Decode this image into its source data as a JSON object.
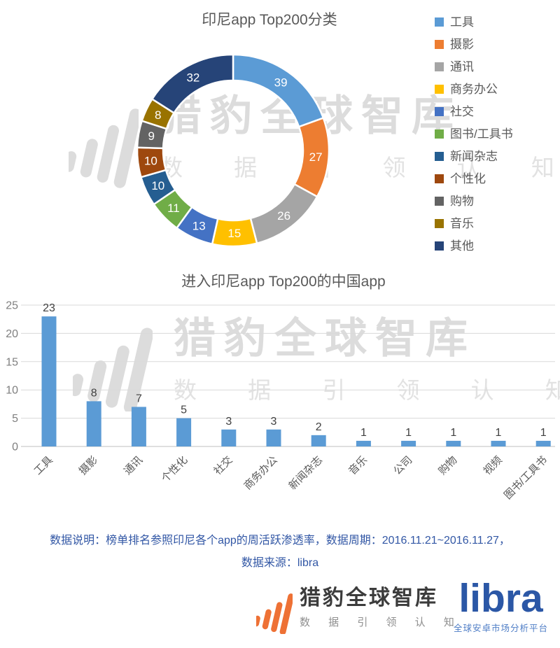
{
  "page_kind": "analytics-report-image",
  "watermark": {
    "brand": "猎豹全球智库",
    "slogan": "数 据 引 领 认 知"
  },
  "chart_data": [
    {
      "type": "pie",
      "donut": true,
      "title": "印尼app Top200分类",
      "total": 200,
      "legend_position": "right",
      "labels": [
        "工具",
        "摄影",
        "通讯",
        "商务办公",
        "社交",
        "图书/工具书",
        "新闻杂志",
        "个性化",
        "购物",
        "音乐",
        "其他"
      ],
      "values": [
        39,
        27,
        26,
        15,
        13,
        11,
        10,
        10,
        9,
        8,
        32
      ],
      "colors": [
        "#5B9BD5",
        "#ED7D31",
        "#A5A5A5",
        "#FFC000",
        "#4472C4",
        "#70AD47",
        "#255E91",
        "#9E480E",
        "#636363",
        "#997300",
        "#264478"
      ],
      "label_color": "#FFFFFF"
    },
    {
      "type": "bar",
      "title": "进入印尼app Top200的中国app",
      "categories": [
        "工具",
        "摄影",
        "通讯",
        "个性化",
        "社交",
        "商务办公",
        "新闻杂志",
        "音乐",
        "公司",
        "购物",
        "视频",
        "图书/工具书"
      ],
      "values": [
        23,
        8,
        7,
        5,
        3,
        3,
        2,
        1,
        1,
        1,
        1,
        1
      ],
      "bar_color": "#5B9BD5",
      "xlabel": "",
      "ylabel": "",
      "ylim": [
        0,
        25
      ],
      "yticks": [
        0,
        5,
        10,
        15,
        20,
        25
      ],
      "grid": true,
      "gridline_color": "#D9D9D9",
      "axis_color": "#BFBFBF"
    }
  ],
  "footer": {
    "note_line1": "数据说明：榜单排名参照印尼各个app的周活跃渗透率，数据周期：2016.11.21~2016.11.27，",
    "note_line2": "数据来源：libra",
    "brand_name": "猎豹全球智库",
    "brand_slogan": "数 据 引 领 认 知",
    "partner_name": "libra",
    "partner_subtitle": "全球安卓市场分析平台"
  },
  "icons": {
    "brand_icon": "cheetah-bars",
    "legend_swatch": "color-square"
  },
  "colors": {
    "title": "#595959",
    "note_blue": "#3257A5",
    "brand_orange": "#EE7135",
    "libra_blue": "#2B57A6",
    "watermark_gray": "#DCDCDC"
  }
}
